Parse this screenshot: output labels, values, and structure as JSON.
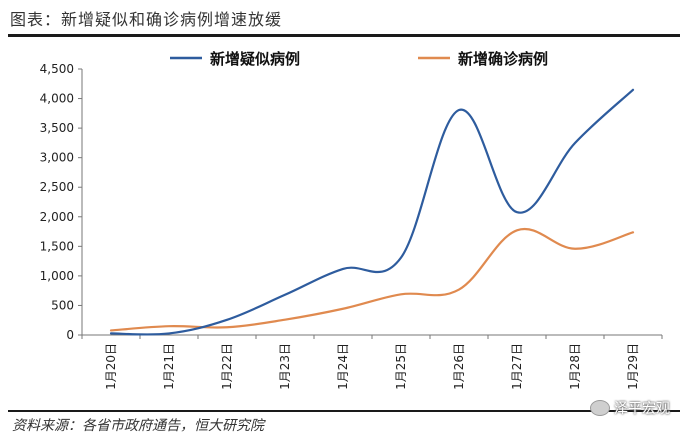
{
  "header": {
    "title": "图表：新增疑似和确诊病例增速放缓"
  },
  "footer": {
    "source": "资料来源：各省市政府通告，恒大研究院",
    "watermark": "泽平宏观"
  },
  "colors": {
    "suspected": "#2e5c9e",
    "confirmed": "#e08a4f",
    "axis": "#555555",
    "text": "#222222"
  },
  "chart_data": {
    "type": "line",
    "title": "图表：新增疑似和确诊病例增速放缓",
    "xlabel": "",
    "ylabel": "",
    "categories": [
      "1月20日",
      "1月21日",
      "1月22日",
      "1月23日",
      "1月24日",
      "1月25日",
      "1月26日",
      "1月27日",
      "1月28日",
      "1月29日"
    ],
    "ylim": [
      0,
      4500
    ],
    "yticks": [
      0,
      500,
      1000,
      1500,
      2000,
      2500,
      3000,
      3500,
      4000,
      4500
    ],
    "ytick_labels": [
      "0",
      "500",
      "1,000",
      "1,500",
      "2,000",
      "2,500",
      "3,000",
      "3,500",
      "4,000",
      "4,500"
    ],
    "grid": false,
    "legend_position": "top",
    "series": [
      {
        "name": "新增疑似病例",
        "color": "#2e5c9e",
        "values": [
          27,
          26,
          257,
          680,
          1118,
          1309,
          3806,
          2077,
          3248,
          4148
        ]
      },
      {
        "name": "新增确诊病例",
        "color": "#e08a4f",
        "values": [
          77,
          149,
          131,
          259,
          444,
          688,
          769,
          1771,
          1459,
          1737
        ]
      }
    ]
  }
}
